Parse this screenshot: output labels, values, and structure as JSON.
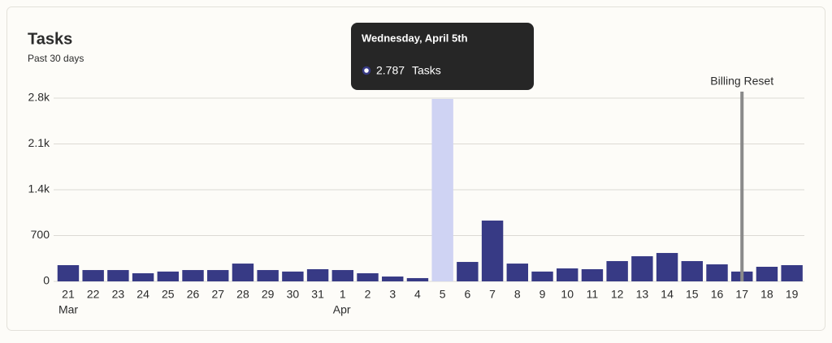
{
  "chart_data": {
    "type": "bar",
    "title": "Tasks",
    "subtitle": "Past 30 days",
    "categories": [
      "21",
      "22",
      "23",
      "24",
      "25",
      "26",
      "27",
      "28",
      "29",
      "30",
      "31",
      "1",
      "2",
      "3",
      "4",
      "5",
      "6",
      "7",
      "8",
      "9",
      "10",
      "11",
      "12",
      "13",
      "14",
      "15",
      "16",
      "17",
      "18",
      "19"
    ],
    "months": [
      {
        "label": "Mar",
        "first": "21"
      },
      {
        "label": "Apr",
        "first": "1"
      }
    ],
    "series": [
      {
        "name": "Tasks",
        "color": "#373a85",
        "values": [
          248,
          173,
          173,
          124,
          150,
          173,
          173,
          272,
          173,
          150,
          186,
          173,
          124,
          74,
          50,
          2787,
          297,
          929,
          272,
          150,
          198,
          186,
          310,
          384,
          434,
          310,
          260,
          150,
          223,
          248
        ]
      }
    ],
    "highlight": {
      "category": "5",
      "color": "#cfd3f3"
    },
    "tooltip": {
      "title": "Wednesday, April 5th",
      "category": "5",
      "value_label": "2.787"
    },
    "annotation": {
      "label": "Billing Reset",
      "category": "17",
      "color": "#8a8a8a"
    },
    "ylim": [
      0,
      2800
    ],
    "yticks": [
      0,
      700,
      {
        "value": 1400,
        "label": "1.4k"
      },
      {
        "value": 2100,
        "label": "2.1k"
      },
      {
        "value": 2800,
        "label": "2.8k"
      }
    ],
    "grid": true
  }
}
